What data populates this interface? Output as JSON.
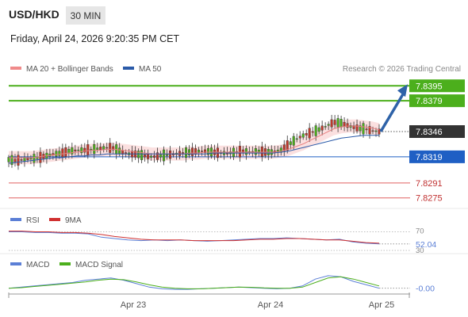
{
  "header": {
    "symbol": "USD/HKD",
    "timeframe": "30 MIN",
    "datetime": "Friday, April 24, 2026 9:20:35 PM CET"
  },
  "legend": {
    "ma20": "MA 20 + Bollinger Bands",
    "ma50": "MA 50",
    "credit": "Research © 2026 Trading Central"
  },
  "colors": {
    "resistance": "#4caf1c",
    "support_blue": "#1f5fc4",
    "support_red": "#e06060",
    "price_label_bg": "#333333",
    "arrow": "#2e62a8",
    "candle_up": "#4caf1c",
    "candle_down": "#c0392b",
    "bollinger_fill": "#fbe0e0",
    "ma20": "#e88080",
    "ma50": "#2a5aa8",
    "rsi": "#5b7fd6",
    "rsi_ma": "#d03030",
    "macd": "#5b7fd6",
    "macd_signal": "#4caf1c"
  },
  "chart_data": [
    {
      "type": "line",
      "title": "USD/HKD price (candles)",
      "x_ticks": [
        "Apr 23",
        "Apr 24",
        "Apr 25"
      ],
      "ylim": [
        7.8268,
        7.8402
      ],
      "levels": [
        {
          "value": 7.8395,
          "label": "7.8395",
          "kind": "resistance"
        },
        {
          "value": 7.8379,
          "label": "7.8379",
          "kind": "resistance"
        },
        {
          "value": 7.8346,
          "label": "7.8346",
          "kind": "current"
        },
        {
          "value": 7.8319,
          "label": "7.8319",
          "kind": "pivot"
        },
        {
          "value": 7.8291,
          "label": "7.8291",
          "kind": "support"
        },
        {
          "value": 7.8275,
          "label": "7.8275",
          "kind": "support"
        }
      ],
      "price_path": [
        7.8316,
        7.8315,
        7.8316,
        7.8317,
        7.8318,
        7.832,
        7.8322,
        7.8323,
        7.8325,
        7.8326,
        7.8326,
        7.8327,
        7.8328,
        7.8329,
        7.8328,
        7.8324,
        7.8322,
        7.8322,
        7.832,
        7.8319,
        7.832,
        7.8321,
        7.8322,
        7.8323,
        7.8324,
        7.8325,
        7.8325,
        7.8324,
        7.8323,
        7.8323,
        7.8324,
        7.8325,
        7.8324,
        7.8325,
        7.8324,
        7.8324,
        7.8326,
        7.8332,
        7.8338,
        7.8342,
        7.8345,
        7.8348,
        7.8352,
        7.8356,
        7.8355,
        7.8352,
        7.835,
        7.8349,
        7.8347,
        7.8346
      ],
      "ma20": [
        7.8318,
        7.8318,
        7.8318,
        7.8318,
        7.8319,
        7.832,
        7.8321,
        7.8322,
        7.8323,
        7.8324,
        7.8325,
        7.8326,
        7.8326,
        7.8327,
        7.8327,
        7.8326,
        7.8325,
        7.8324,
        7.8323,
        7.8322,
        7.8322,
        7.8322,
        7.8322,
        7.8322,
        7.8323,
        7.8323,
        7.8324,
        7.8324,
        7.8324,
        7.8324,
        7.8324,
        7.8324,
        7.8324,
        7.8324,
        7.8324,
        7.8324,
        7.8325,
        7.8327,
        7.833,
        7.8333,
        7.8337,
        7.8341,
        7.8345,
        7.8349,
        7.8351,
        7.8352,
        7.8352,
        7.8351,
        7.835,
        7.8348
      ],
      "ma50": [
        7.8312,
        7.8313,
        7.8314,
        7.8315,
        7.8316,
        7.8317,
        7.8318,
        7.8318,
        7.8319,
        7.832,
        7.832,
        7.8321,
        7.8321,
        7.8322,
        7.8322,
        7.8322,
        7.8322,
        7.8322,
        7.8322,
        7.8322,
        7.8322,
        7.8322,
        7.8322,
        7.8322,
        7.8322,
        7.8322,
        7.8322,
        7.8323,
        7.8323,
        7.8323,
        7.8323,
        7.8323,
        7.8323,
        7.8323,
        7.8323,
        7.8323,
        7.8324,
        7.8325,
        7.8327,
        7.8329,
        7.8331,
        7.8333,
        7.8335,
        7.8337,
        7.8339,
        7.834,
        7.8341,
        7.8342,
        7.8342,
        7.8342
      ],
      "bollinger_width": 0.0007,
      "projection": {
        "from": 7.8346,
        "to": 7.8395
      }
    },
    {
      "type": "line",
      "title": "RSI",
      "series": [
        {
          "name": "RSI",
          "values": [
            70,
            70,
            69,
            69,
            68,
            68,
            67,
            62,
            60,
            58,
            57,
            58,
            57,
            58,
            57,
            56,
            57,
            58,
            59,
            60,
            60,
            61,
            60,
            59,
            58,
            59,
            55,
            53,
            52
          ]
        },
        {
          "name": "9MA",
          "values": [
            71,
            71,
            70,
            70,
            69,
            69,
            68,
            66,
            63,
            61,
            59,
            58,
            58,
            58,
            57,
            57,
            57,
            57,
            58,
            59,
            59,
            60,
            60,
            59,
            58,
            58,
            56,
            54,
            53
          ]
        }
      ],
      "ylim": [
        40,
        80
      ],
      "levels": [
        70,
        30
      ],
      "level_labels": [
        "70",
        "30"
      ],
      "current_label": "52.04"
    },
    {
      "type": "line",
      "title": "MACD",
      "series": [
        {
          "name": "MACD",
          "values": [
            0.0,
            0.1,
            0.2,
            0.3,
            0.4,
            0.5,
            0.7,
            0.8,
            0.9,
            0.7,
            0.4,
            0.1,
            -0.05,
            -0.1,
            -0.1,
            -0.05,
            0.0,
            0.05,
            0.1,
            0.05,
            0.0,
            -0.05,
            0.0,
            0.2,
            0.8,
            1.1,
            1.0,
            0.6,
            0.3,
            0.0
          ]
        },
        {
          "name": "MACD Signal",
          "values": [
            0.0,
            0.05,
            0.15,
            0.25,
            0.35,
            0.45,
            0.55,
            0.7,
            0.8,
            0.75,
            0.55,
            0.3,
            0.1,
            0.0,
            -0.05,
            -0.05,
            0.0,
            0.05,
            0.1,
            0.08,
            0.03,
            0.0,
            0.0,
            0.1,
            0.5,
            0.9,
            1.0,
            0.8,
            0.5,
            0.2
          ]
        }
      ],
      "ylim": [
        -0.3,
        1.3
      ],
      "current_label": "-0.00"
    }
  ],
  "x_axis": {
    "ticks": [
      "Apr 23",
      "Apr 24",
      "Apr 25"
    ]
  }
}
